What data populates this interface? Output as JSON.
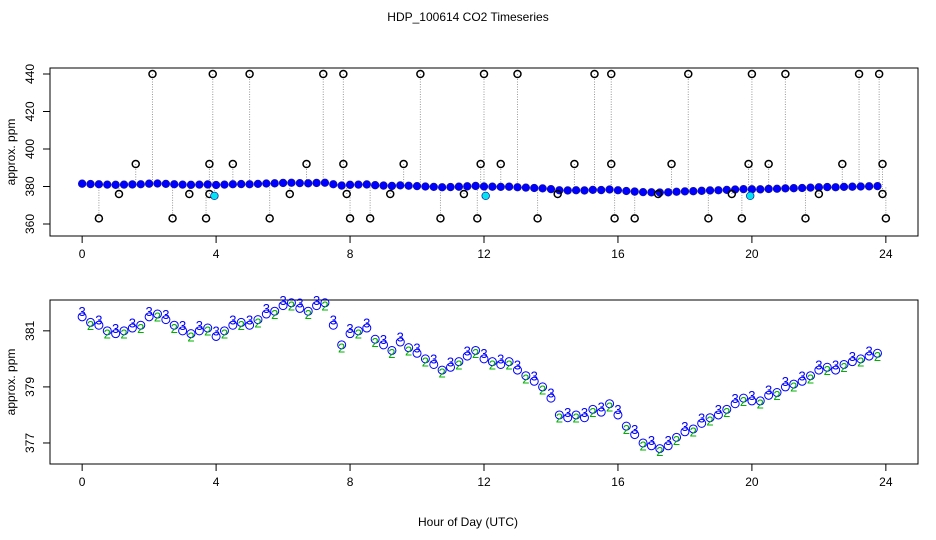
{
  "chart_data": [
    {
      "type": "scatter",
      "title": "HDP_100614  CO2 Timeseries",
      "ylabel": "approx. ppm",
      "xlim": [
        -0.96,
        24.96
      ],
      "xticks": [
        0,
        4,
        8,
        12,
        16,
        20,
        24
      ],
      "ylim": [
        353.6,
        443.2
      ],
      "yticks": [
        360,
        380,
        400,
        420,
        440
      ],
      "series": [
        {
          "color": "#0000ff",
          "x": [
            0,
            0.25,
            0.5,
            0.75,
            1,
            1.25,
            1.5,
            1.75,
            2,
            2.25,
            2.5,
            2.75,
            3,
            3.25,
            3.5,
            3.75,
            4,
            4.25,
            4.5,
            4.75,
            5,
            5.25,
            5.5,
            5.75,
            6,
            6.25,
            6.5,
            6.75,
            7,
            7.25,
            7.5,
            7.75,
            8,
            8.25,
            8.5,
            8.75,
            9,
            9.25,
            9.5,
            9.75,
            10,
            10.25,
            10.5,
            10.75,
            11,
            11.25,
            11.5,
            11.75,
            12,
            12.25,
            12.5,
            12.75,
            13,
            13.25,
            13.5,
            13.75,
            14,
            14.25,
            14.5,
            14.75,
            15,
            15.25,
            15.5,
            15.75,
            16,
            16.25,
            16.5,
            16.75,
            17,
            17.25,
            17.5,
            17.75,
            18,
            18.25,
            18.5,
            18.75,
            19,
            19.25,
            19.5,
            19.75,
            20,
            20.25,
            20.5,
            20.75,
            21,
            21.25,
            21.5,
            21.75,
            22,
            22.25,
            22.5,
            22.75,
            23,
            23.25,
            23.5,
            23.75
          ],
          "values": [
            381.5,
            381.3,
            381.2,
            381.0,
            380.9,
            381.0,
            381.1,
            381.2,
            381.5,
            381.6,
            381.4,
            381.2,
            381.0,
            380.9,
            381.0,
            381.1,
            380.8,
            381.0,
            381.2,
            381.3,
            381.2,
            381.4,
            381.6,
            381.7,
            381.9,
            382.0,
            381.8,
            381.7,
            381.9,
            382.0,
            381.2,
            380.5,
            380.9,
            381.0,
            381.1,
            380.7,
            380.5,
            380.3,
            380.6,
            380.4,
            380.2,
            380.0,
            379.8,
            379.6,
            379.7,
            379.9,
            380.1,
            380.3,
            380.0,
            379.9,
            379.8,
            379.9,
            379.6,
            379.4,
            379.2,
            379.0,
            378.6,
            378.0,
            377.9,
            378.0,
            377.9,
            378.2,
            378.1,
            378.4,
            378.0,
            377.6,
            377.3,
            377.0,
            376.9,
            376.8,
            376.9,
            377.2,
            377.4,
            377.5,
            377.7,
            377.9,
            378.0,
            378.2,
            378.4,
            378.6,
            378.5,
            378.5,
            378.7,
            378.8,
            379.0,
            379.1,
            379.2,
            379.4,
            379.6,
            379.7,
            379.6,
            379.8,
            379.9,
            380.0,
            380.1,
            380.2
          ]
        },
        {
          "color": "#000000",
          "x": [
            0.5,
            1.1,
            1.6,
            2.1,
            2.7,
            3.2,
            3.7,
            3.8,
            3.8,
            3.9,
            4.5,
            5.0,
            5.6,
            6.2,
            6.7,
            7.2,
            7.8,
            7.8,
            7.9,
            8.0,
            8.6,
            9.2,
            9.6,
            10.1,
            10.7,
            11.4,
            11.8,
            11.9,
            12.0,
            12.5,
            13.0,
            13.6,
            14.2,
            14.7,
            15.3,
            15.8,
            15.8,
            15.9,
            16.5,
            17.2,
            17.6,
            18.1,
            18.7,
            19.4,
            19.7,
            19.9,
            20.0,
            20.5,
            21.0,
            21.6,
            22.0,
            22.7,
            23.2,
            23.8,
            23.9,
            23.9,
            24.0
          ],
          "values": [
            363,
            376,
            392,
            440,
            363,
            376,
            363,
            376,
            392,
            440,
            392,
            440,
            363,
            376,
            392,
            440,
            440,
            392,
            376,
            363,
            363,
            376,
            392,
            440,
            363,
            376,
            363,
            392,
            440,
            392,
            440,
            363,
            376,
            392,
            440,
            440,
            392,
            363,
            363,
            376,
            392,
            440,
            363,
            376,
            363,
            392,
            440,
            392,
            440,
            363,
            376,
            392,
            440,
            440,
            392,
            376,
            363
          ]
        },
        {
          "color": "#00e5ee",
          "x": [
            3.95,
            12.05,
            19.95
          ],
          "values": [
            375,
            375,
            375
          ]
        }
      ]
    },
    {
      "type": "scatter",
      "ylabel": "approx. ppm",
      "xlabel": "Hour of Day (UTC)",
      "xlim": [
        -0.96,
        24.96
      ],
      "xticks": [
        0,
        4,
        8,
        12,
        16,
        20,
        24
      ],
      "ylim": [
        376.25,
        382.1
      ],
      "yticks": [
        377,
        379,
        381
      ],
      "series": [
        {
          "color": "#0000ff",
          "x": [
            0,
            0.25,
            0.5,
            0.75,
            1,
            1.25,
            1.5,
            1.75,
            2,
            2.25,
            2.5,
            2.75,
            3,
            3.25,
            3.5,
            3.75,
            4,
            4.25,
            4.5,
            4.75,
            5,
            5.25,
            5.5,
            5.75,
            6,
            6.25,
            6.5,
            6.75,
            7,
            7.25,
            7.5,
            7.75,
            8,
            8.25,
            8.5,
            8.75,
            9,
            9.25,
            9.5,
            9.75,
            10,
            10.25,
            10.5,
            10.75,
            11,
            11.25,
            11.5,
            11.75,
            12,
            12.25,
            12.5,
            12.75,
            13,
            13.25,
            13.5,
            13.75,
            14,
            14.25,
            14.5,
            14.75,
            15,
            15.25,
            15.5,
            15.75,
            16,
            16.25,
            16.5,
            16.75,
            17,
            17.25,
            17.5,
            17.75,
            18,
            18.25,
            18.5,
            18.75,
            19,
            19.25,
            19.5,
            19.75,
            20,
            20.25,
            20.5,
            20.75,
            21,
            21.25,
            21.5,
            21.75,
            22,
            22.25,
            22.5,
            22.75,
            23,
            23.25,
            23.5,
            23.75
          ],
          "values": [
            381.5,
            381.3,
            381.2,
            381.0,
            380.9,
            381.0,
            381.1,
            381.2,
            381.5,
            381.6,
            381.4,
            381.2,
            381.0,
            380.9,
            381.0,
            381.1,
            380.8,
            381.0,
            381.2,
            381.3,
            381.2,
            381.4,
            381.6,
            381.7,
            381.9,
            382.0,
            381.8,
            381.7,
            381.9,
            382.0,
            381.2,
            380.5,
            380.9,
            381.0,
            381.1,
            380.7,
            380.5,
            380.3,
            380.6,
            380.4,
            380.2,
            380.0,
            379.8,
            379.6,
            379.7,
            379.9,
            380.1,
            380.3,
            380.0,
            379.9,
            379.8,
            379.9,
            379.6,
            379.4,
            379.2,
            379.0,
            378.6,
            378.0,
            377.9,
            378.0,
            377.9,
            378.2,
            378.1,
            378.4,
            378.0,
            377.6,
            377.3,
            377.0,
            376.9,
            376.8,
            376.9,
            377.2,
            377.4,
            377.5,
            377.7,
            377.9,
            378.0,
            378.2,
            378.4,
            378.6,
            378.5,
            378.5,
            378.7,
            378.8,
            379.0,
            379.1,
            379.2,
            379.4,
            379.6,
            379.7,
            379.6,
            379.8,
            379.9,
            380.0,
            380.1,
            380.2
          ]
        }
      ],
      "symbol_series": [
        {
          "symbol": "3",
          "color": "#0000ff",
          "x": [
            0,
            0.5,
            1,
            1.5,
            2,
            2.5,
            3,
            3.5,
            4,
            4.5,
            5,
            5.5,
            6,
            6.5,
            7,
            7.5,
            8,
            8.5,
            9,
            9.5,
            10,
            10.5,
            11,
            11.5,
            12,
            12.5,
            13,
            13.5,
            14,
            14.5,
            15,
            15.5,
            16,
            16.5,
            17,
            17.5,
            18,
            18.5,
            19,
            19.5,
            20,
            20.5,
            21,
            21.5,
            22,
            22.5,
            23,
            23.5
          ],
          "values": [
            381.65,
            381.35,
            381.05,
            381.25,
            381.65,
            381.55,
            381.15,
            381.15,
            380.95,
            381.35,
            381.35,
            381.75,
            382.05,
            381.95,
            382.05,
            381.35,
            381.05,
            381.25,
            380.65,
            380.75,
            380.35,
            379.95,
            379.85,
            380.25,
            380.15,
            379.95,
            379.75,
            379.35,
            378.75,
            378.05,
            378.05,
            378.25,
            378.15,
            377.45,
            377.05,
            377.05,
            377.55,
            377.85,
            378.15,
            378.55,
            378.65,
            378.85,
            379.15,
            379.35,
            379.75,
            379.75,
            380.05,
            380.25
          ]
        },
        {
          "symbol": "2",
          "color": "#00b000",
          "x": [
            0.25,
            0.75,
            1.25,
            1.75,
            2.25,
            2.75,
            3.25,
            3.75,
            4.25,
            4.75,
            5.25,
            5.75,
            6.25,
            6.75,
            7.25,
            7.75,
            8.25,
            8.75,
            9.25,
            9.75,
            10.25,
            10.75,
            11.25,
            11.75,
            12.25,
            12.75,
            13.25,
            13.75,
            14.25,
            14.75,
            15.25,
            15.75,
            16.25,
            16.75,
            17.25,
            17.75,
            18.25,
            18.75,
            19.25,
            19.75,
            20.25,
            20.75,
            21.25,
            21.75,
            22.25,
            22.75,
            23.25,
            23.75
          ],
          "values": [
            381.15,
            380.85,
            380.85,
            381.05,
            381.45,
            381.05,
            380.75,
            380.95,
            380.85,
            381.15,
            381.25,
            381.55,
            381.85,
            381.55,
            381.85,
            380.35,
            380.85,
            380.55,
            380.15,
            380.25,
            379.85,
            379.45,
            379.75,
            380.15,
            379.75,
            379.75,
            379.25,
            378.85,
            377.85,
            377.85,
            378.05,
            378.25,
            377.45,
            376.85,
            376.65,
            377.05,
            377.35,
            377.75,
            378.05,
            378.45,
            378.35,
            378.65,
            378.95,
            379.25,
            379.55,
            379.65,
            379.85,
            380.05
          ]
        }
      ]
    }
  ]
}
